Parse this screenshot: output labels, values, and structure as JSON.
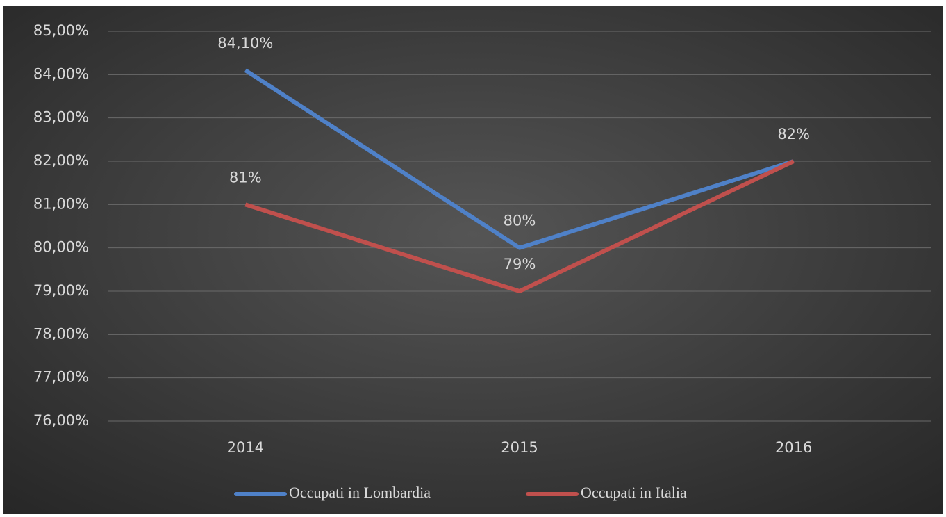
{
  "chart_data": {
    "type": "line",
    "categories": [
      "2014",
      "2015",
      "2016"
    ],
    "series": [
      {
        "name": "Occupati in Lombardia",
        "color": "#4f81c8",
        "values": [
          84.1,
          80,
          82
        ],
        "value_labels": [
          "84,10%",
          "80%",
          null
        ]
      },
      {
        "name": "Occupati in Italia",
        "color": "#c0504d",
        "values": [
          81,
          79,
          82
        ],
        "value_labels": [
          "81%",
          "79%",
          "82%"
        ]
      }
    ],
    "ylim": [
      76,
      85
    ],
    "yticks": [
      {
        "value": 76,
        "label": "76,00%"
      },
      {
        "value": 77,
        "label": "77,00%"
      },
      {
        "value": 78,
        "label": "78,00%"
      },
      {
        "value": 79,
        "label": "79,00%"
      },
      {
        "value": 80,
        "label": "80,00%"
      },
      {
        "value": 81,
        "label": "81,00%"
      },
      {
        "value": 82,
        "label": "82,00%"
      },
      {
        "value": 83,
        "label": "83,00%"
      },
      {
        "value": 84,
        "label": "84,00%"
      },
      {
        "value": 85,
        "label": "85,00%"
      }
    ],
    "grid": true,
    "legend": "bottom"
  }
}
